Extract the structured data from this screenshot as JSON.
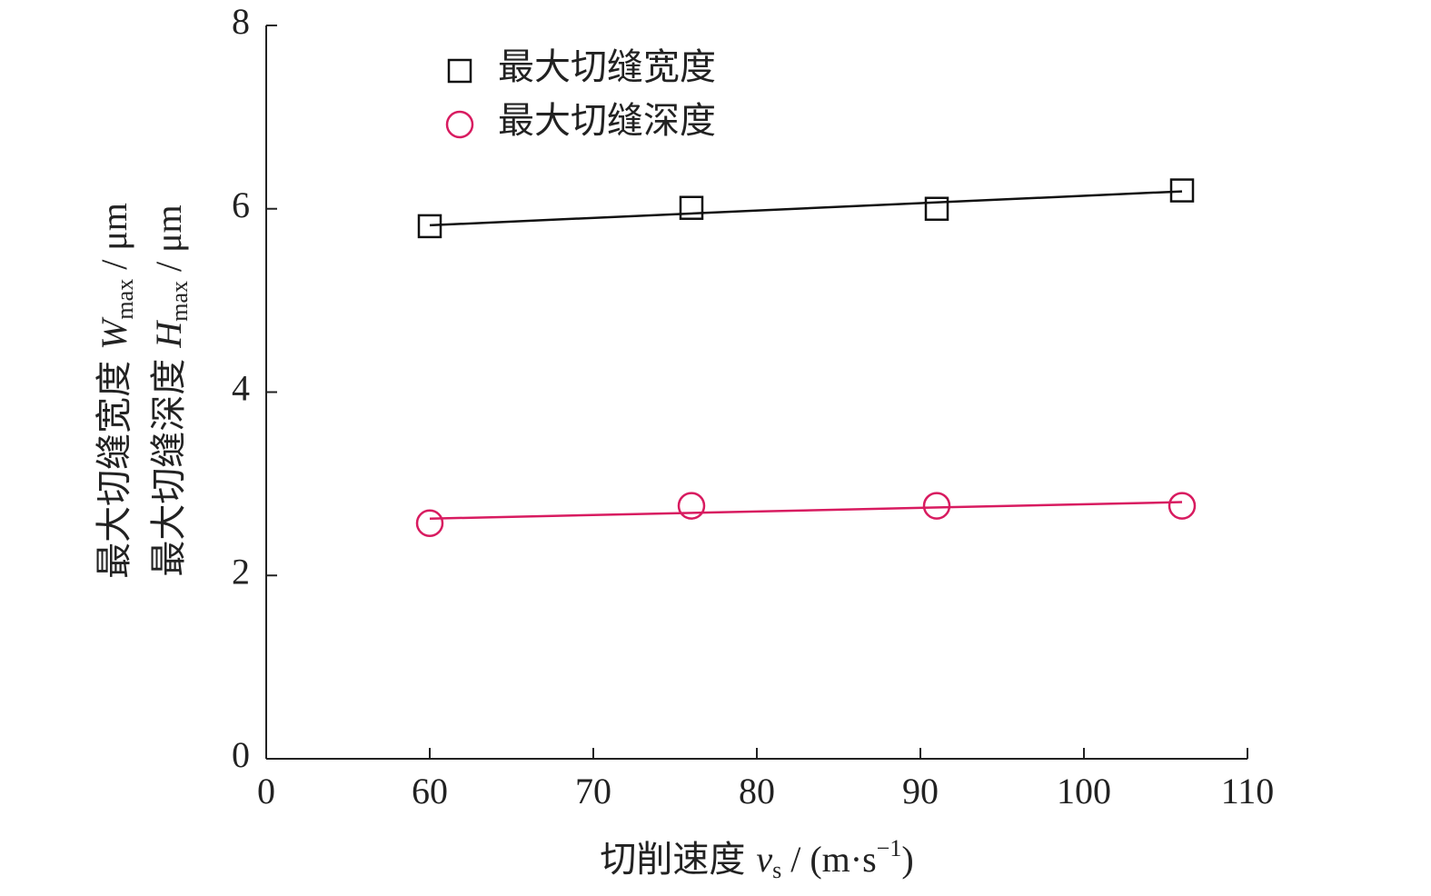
{
  "chart_data": {
    "type": "scatter",
    "xlabel": {
      "text": "切削速度",
      "symbol": "v",
      "subscript": "s",
      "unit": "/ (m·s",
      "superscript": "−1",
      "close": ")"
    },
    "ylabel": [
      {
        "text": "最大切缝宽度",
        "symbol": "W",
        "subscript": "max",
        "unit": "/ μm"
      },
      {
        "text": "最大切缝深度",
        "symbol": "H",
        "subscript": "max",
        "unit": "/ μm"
      }
    ],
    "x": [
      60,
      76,
      91,
      106
    ],
    "series": [
      {
        "name": "最大切缝宽度",
        "color": "#111111",
        "marker": "square",
        "values": [
          5.81,
          6.01,
          6.0,
          6.2
        ],
        "trendline": {
          "x": [
            60,
            106
          ],
          "values": [
            5.82,
            6.19
          ]
        }
      },
      {
        "name": "最大切缝深度",
        "color": "#d81b60",
        "marker": "circle",
        "values": [
          2.57,
          2.76,
          2.76,
          2.76
        ],
        "trendline": {
          "x": [
            60,
            106
          ],
          "values": [
            2.62,
            2.8
          ]
        }
      }
    ],
    "xlim": [
      50,
      110
    ],
    "xticks": [
      {
        "value": 50,
        "label": "0"
      },
      60,
      70,
      80,
      90,
      100,
      110
    ],
    "ylim": [
      0,
      8
    ],
    "yticks": [
      0,
      2,
      4,
      6,
      8
    ],
    "legend": "upper left",
    "grid": false
  }
}
